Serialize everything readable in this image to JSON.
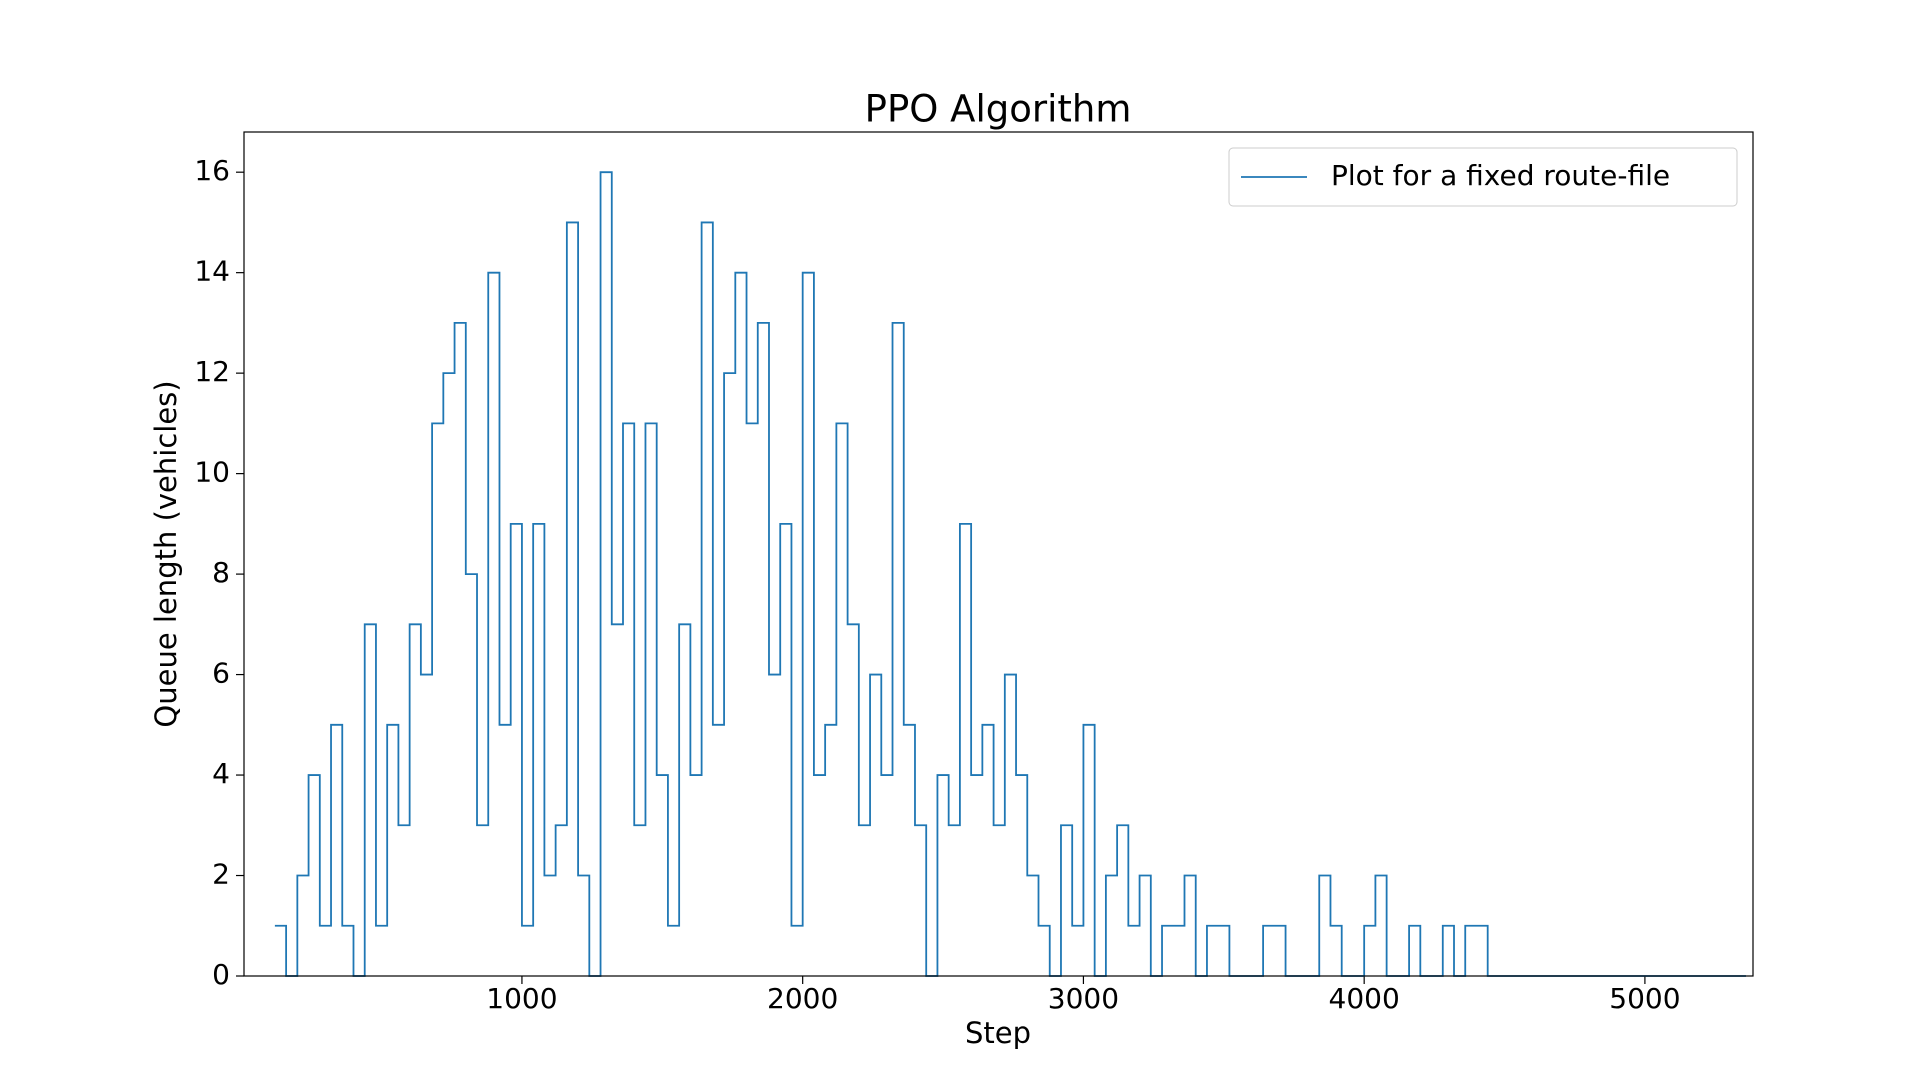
{
  "chart_data": {
    "type": "line",
    "title": "PPO Algorithm",
    "x_label": "Step",
    "y_label": "Queue length (vehicles)",
    "drawstyle": "steps",
    "legend": "upper right",
    "x": [
      120,
      160,
      200,
      240,
      280,
      320,
      360,
      400,
      440,
      480,
      520,
      560,
      600,
      640,
      680,
      720,
      760,
      800,
      840,
      880,
      920,
      960,
      1000,
      1040,
      1080,
      1120,
      1160,
      1200,
      1240,
      1280,
      1320,
      1360,
      1400,
      1440,
      1480,
      1520,
      1560,
      1600,
      1640,
      1680,
      1720,
      1760,
      1800,
      1840,
      1880,
      1920,
      1960,
      2000,
      2040,
      2080,
      2120,
      2160,
      2200,
      2240,
      2280,
      2320,
      2360,
      2400,
      2440,
      2480,
      2520,
      2560,
      2600,
      2640,
      2680,
      2720,
      2760,
      2800,
      2840,
      2880,
      2920,
      2960,
      3000,
      3040,
      3080,
      3120,
      3160,
      3200,
      3240,
      3280,
      3320,
      3360,
      3400,
      3440,
      3480,
      3520,
      3560,
      3600,
      3640,
      3680,
      3720,
      3760,
      3800,
      3840,
      3880,
      3920,
      3960,
      4000,
      4040,
      4080,
      4120,
      4160,
      4200,
      4240,
      4280,
      4320,
      4360,
      4400,
      4440,
      4480,
      4520,
      4560,
      4600,
      4640,
      4680,
      4720,
      4760,
      4800,
      4840,
      4880,
      4920,
      4960,
      5000,
      5040,
      5080,
      5120,
      5160,
      5200,
      5240,
      5280,
      5320,
      5360
    ],
    "series": [
      {
        "name": "Plot for a fixed route-file",
        "color": "#1f77b4",
        "values": [
          1,
          0,
          2,
          4,
          1,
          5,
          1,
          0,
          7,
          1,
          5,
          3,
          7,
          6,
          11,
          12,
          13,
          8,
          3,
          14,
          5,
          9,
          1,
          9,
          2,
          3,
          15,
          2,
          0,
          16,
          7,
          11,
          3,
          11,
          4,
          1,
          7,
          4,
          15,
          5,
          12,
          14,
          11,
          13,
          6,
          9,
          1,
          14,
          4,
          5,
          11,
          7,
          3,
          6,
          4,
          13,
          5,
          3,
          0,
          4,
          3,
          9,
          4,
          5,
          3,
          6,
          4,
          2,
          1,
          0,
          3,
          1,
          5,
          0,
          2,
          3,
          1,
          2,
          0,
          1,
          1,
          2,
          0,
          1,
          1,
          0,
          0,
          0,
          1,
          1,
          0,
          0,
          0,
          2,
          1,
          0,
          0,
          1,
          2,
          0,
          0,
          1,
          0,
          0,
          1,
          0,
          1,
          1,
          0,
          0,
          0,
          0,
          0,
          0,
          0,
          0,
          0,
          0,
          0,
          0,
          0,
          0,
          0,
          0,
          0,
          0,
          0,
          0,
          0,
          0,
          0,
          0
        ]
      }
    ],
    "xlim": [
      10,
      5385
    ],
    "ylim": [
      0,
      16.8
    ],
    "xticks": [
      1000,
      2000,
      3000,
      4000,
      5000
    ],
    "yticks": [
      0,
      2,
      4,
      6,
      8,
      10,
      12,
      14,
      16
    ]
  }
}
